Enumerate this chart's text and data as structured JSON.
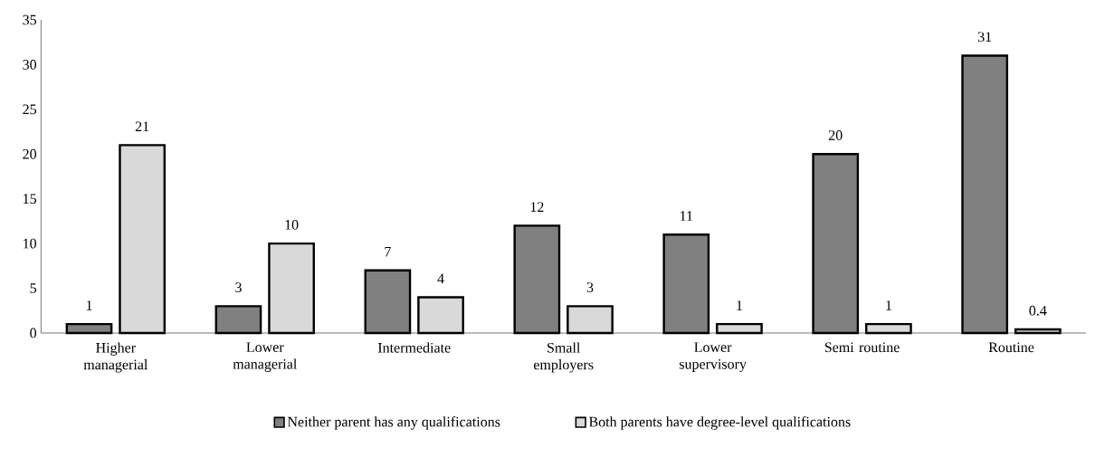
{
  "chart_data": {
    "type": "bar",
    "categories": [
      "Higher managerial",
      "Lower managerial",
      "Intermediate",
      "Small employers",
      "Lower supervisory",
      "Semi routine",
      "Routine"
    ],
    "series": [
      {
        "name": "Neither parent has any qualifications",
        "color": "#808080",
        "values": [
          1,
          3,
          7,
          12,
          11,
          20,
          31
        ],
        "value_labels": [
          "1",
          "3",
          "7",
          "12",
          "11",
          "20",
          "31"
        ]
      },
      {
        "name": "Both parents have degree-level qualifications",
        "color": "#d9d9d9",
        "values": [
          21,
          10,
          4,
          3,
          1,
          1,
          0.4
        ],
        "value_labels": [
          "21",
          "10",
          "4",
          "3",
          "1",
          "1",
          "0.4"
        ]
      }
    ],
    "ylim": [
      0,
      35
    ],
    "yticks": [
      0,
      5,
      10,
      15,
      20,
      25,
      30,
      35
    ],
    "grid": false,
    "legend": "bottom"
  }
}
